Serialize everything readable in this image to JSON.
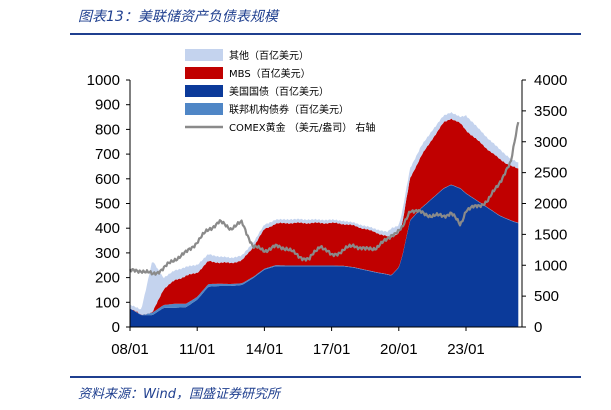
{
  "title": "图表13：美联储资产负债表规模",
  "source": "资料来源：Wind，国盛证券研究所",
  "chart_data": {
    "type": "area",
    "x": [
      "2008-01",
      "2008-07",
      "2009-01",
      "2009-07",
      "2010-01",
      "2010-07",
      "2011-01",
      "2011-07",
      "2012-01",
      "2012-07",
      "2013-01",
      "2013-07",
      "2014-01",
      "2014-07",
      "2015-01",
      "2015-07",
      "2016-01",
      "2016-07",
      "2017-01",
      "2017-07",
      "2018-01",
      "2018-07",
      "2019-01",
      "2019-07",
      "2019-09",
      "2020-01",
      "2020-03",
      "2020-07",
      "2021-01",
      "2021-07",
      "2022-01",
      "2022-05",
      "2022-10",
      "2023-01",
      "2023-07",
      "2024-01",
      "2024-07",
      "2025-01",
      "2025-05"
    ],
    "xtick_labels": [
      "08/01",
      "11/01",
      "14/01",
      "17/01",
      "20/01",
      "23/01"
    ],
    "ylim_left": [
      0,
      1000
    ],
    "yticks_left": [
      0,
      100,
      200,
      300,
      400,
      500,
      600,
      700,
      800,
      900,
      1000
    ],
    "ylim_right": [
      0,
      4000
    ],
    "yticks_right": [
      0,
      500,
      1000,
      1500,
      2000,
      2500,
      3000,
      3500,
      4000
    ],
    "stacked": true,
    "series": [
      {
        "name": "美国国债（百亿美元）",
        "axis": "left",
        "color": "#0b3a9a",
        "values": [
          75,
          48,
          48,
          77,
          78,
          80,
          110,
          163,
          166,
          166,
          170,
          198,
          232,
          246,
          246,
          246,
          246,
          246,
          246,
          246,
          240,
          230,
          220,
          212,
          208,
          240,
          290,
          430,
          480,
          520,
          560,
          575,
          560,
          540,
          510,
          480,
          450,
          430,
          420
        ]
      },
      {
        "name": "联邦机构债券（百亿美元）",
        "axis": "left",
        "color": "#4f86c6",
        "values": [
          0,
          2,
          10,
          12,
          16,
          14,
          12,
          11,
          9,
          8,
          7,
          5,
          4,
          4,
          3,
          3,
          3,
          3,
          3,
          2,
          2,
          2,
          2,
          2,
          2,
          2,
          2,
          2,
          2,
          2,
          2,
          2,
          2,
          2,
          2,
          2,
          2,
          2,
          2
        ]
      },
      {
        "name": "MBS（百亿美元）",
        "axis": "left",
        "color": "#c00000",
        "values": [
          0,
          0,
          0,
          65,
          95,
          113,
          98,
          92,
          86,
          85,
          92,
          120,
          160,
          168,
          172,
          172,
          172,
          172,
          172,
          170,
          168,
          165,
          160,
          152,
          150,
          140,
          130,
          170,
          210,
          240,
          265,
          268,
          262,
          255,
          245,
          235,
          228,
          220,
          218
        ]
      },
      {
        "name": "其他（百亿美元）",
        "axis": "left",
        "color": "#c4d3ee",
        "values": [
          15,
          20,
          210,
          45,
          40,
          36,
          32,
          28,
          24,
          21,
          20,
          19,
          18,
          16,
          15,
          15,
          14,
          13,
          13,
          12,
          12,
          12,
          14,
          18,
          40,
          30,
          50,
          40,
          40,
          35,
          28,
          25,
          25,
          60,
          52,
          45,
          40,
          28,
          25
        ]
      },
      {
        "name": "COMEX黄金 （美元/盎司） 右轴",
        "axis": "right",
        "color": "#8a8a8a",
        "type": "line",
        "values": [
          900,
          920,
          850,
          950,
          1100,
          1200,
          1380,
          1580,
          1700,
          1600,
          1690,
          1300,
          1240,
          1300,
          1280,
          1150,
          1090,
          1330,
          1150,
          1240,
          1330,
          1250,
          1290,
          1420,
          1500,
          1550,
          1600,
          1900,
          1850,
          1800,
          1800,
          1850,
          1650,
          1900,
          1950,
          2050,
          2350,
          2650,
          3350
        ]
      }
    ],
    "legend_order": [
      "其他（百亿美元）",
      "MBS（百亿美元）",
      "美国国债（百亿美元）",
      "联邦机构债券（百亿美元）",
      "COMEX黄金 （美元/盎司） 右轴"
    ],
    "legend_position": "top-center",
    "grid": false
  }
}
